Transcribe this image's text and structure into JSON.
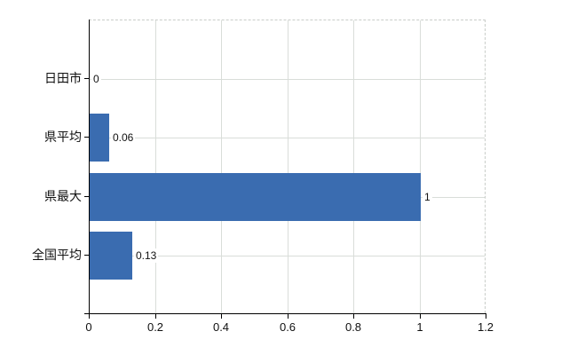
{
  "chart_data": {
    "type": "bar",
    "orientation": "horizontal",
    "title": "",
    "xlabel": "",
    "ylabel": "",
    "categories": [
      "日田市",
      "県平均",
      "県最大",
      "全国平均"
    ],
    "values": [
      0,
      0.06,
      1,
      0.13
    ],
    "value_labels": [
      "0",
      "0.06",
      "1",
      "0.13"
    ],
    "xlim": [
      0,
      1.2
    ],
    "x_tick_values": [
      0,
      0.2,
      0.4,
      0.6,
      0.8,
      1,
      1.2
    ],
    "x_tick_labels": [
      "0",
      "0.2",
      "0.4",
      "0.6",
      "0.8",
      "1",
      "1.2"
    ],
    "grid": true,
    "legend": false,
    "colors": {
      "bar": "#3a6cb0",
      "gridline": "#d9ddd9",
      "frame_dashed": "#c9cdc9",
      "axis": "#000000",
      "text": "#111111",
      "background": "#ffffff"
    }
  }
}
